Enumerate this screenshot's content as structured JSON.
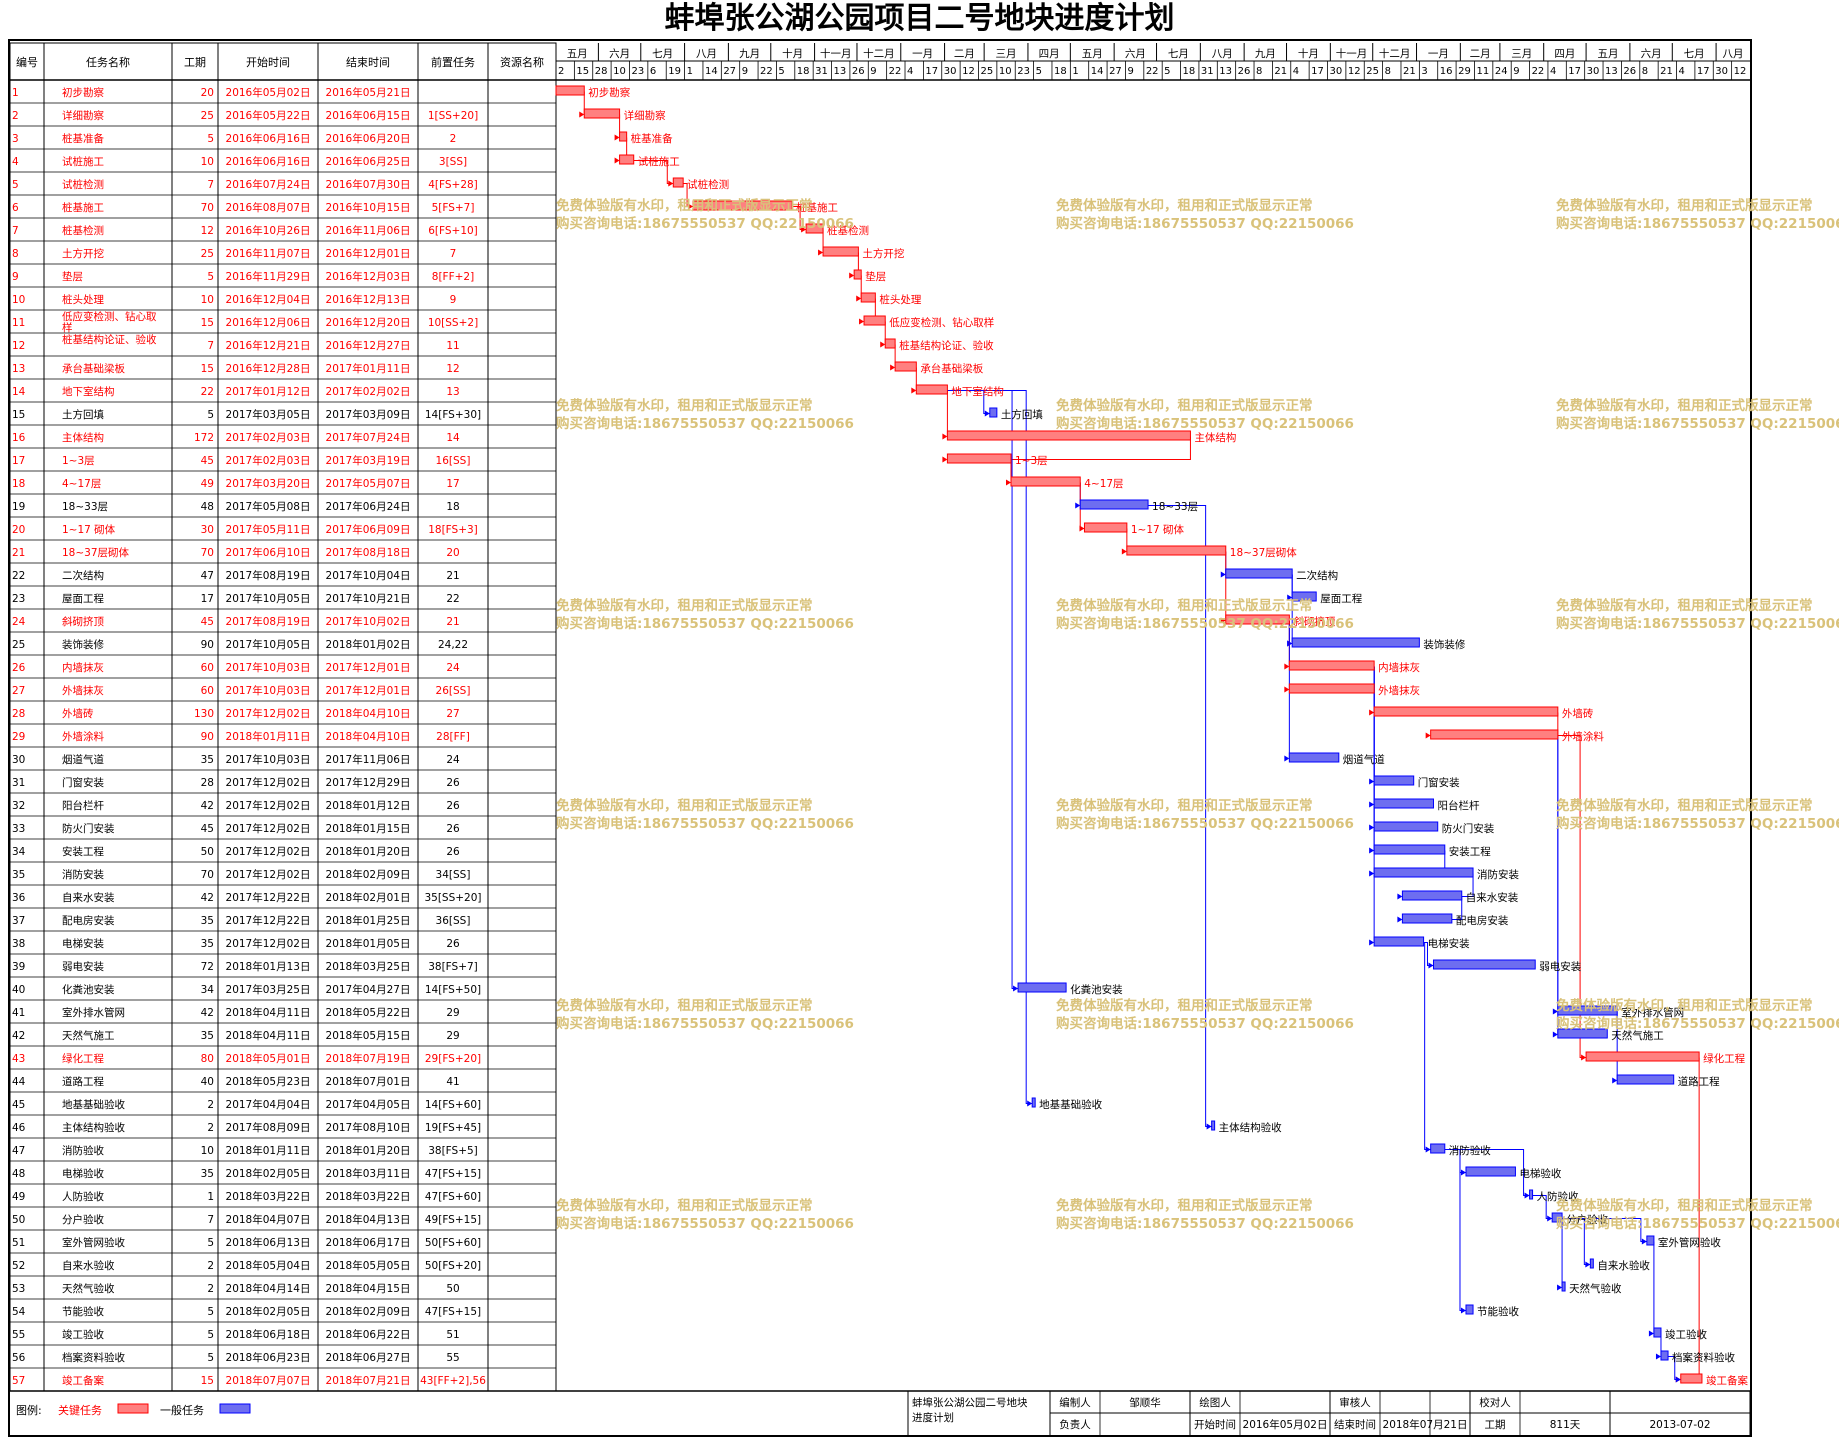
{
  "title": "蚌埠张公湖公园项目二号地块进度计划",
  "headers": {
    "id": "编号",
    "name": "任务名称",
    "dur": "工期",
    "start": "开始时间",
    "end": "结束时间",
    "pred": "前置任务",
    "res": "资源名称"
  },
  "timeline": {
    "months": [
      "五月",
      "六月",
      "七月",
      "八月",
      "九月",
      "十月",
      "十一月",
      "十二月",
      "一月",
      "二月",
      "三月",
      "四月",
      "五月",
      "六月",
      "七月",
      "八月",
      "九月",
      "十月",
      "十一月",
      "十二月",
      "一月",
      "二月",
      "三月",
      "四月",
      "五月",
      "六月",
      "七月",
      "八月"
    ],
    "weeks": [
      "2",
      "15",
      "28",
      "10",
      "23",
      "6",
      "19",
      "1",
      "14",
      "27",
      "9",
      "22",
      "5",
      "18",
      "31",
      "13",
      "26",
      "9",
      "22",
      "4",
      "17",
      "30",
      "12",
      "25",
      "10",
      "23",
      "5",
      "18",
      "1",
      "14",
      "27",
      "9",
      "22",
      "5",
      "18",
      "31",
      "13",
      "26",
      "8",
      "21",
      "4",
      "17",
      "30",
      "12",
      "25",
      "8",
      "21",
      "3",
      "16",
      "29",
      "11",
      "24",
      "9",
      "22",
      "4",
      "17",
      "30",
      "13",
      "26",
      "8",
      "21",
      "4",
      "17",
      "30",
      "12"
    ]
  },
  "tasks": [
    {
      "id": "1",
      "name": "初步勘察",
      "dur": "20",
      "start": "2016年05月02日",
      "end": "2016年05月21日",
      "pred": "",
      "critical": true
    },
    {
      "id": "2",
      "name": "详细勘察",
      "dur": "25",
      "start": "2016年05月22日",
      "end": "2016年06月15日",
      "pred": "1[SS+20]",
      "critical": true
    },
    {
      "id": "3",
      "name": "桩基准备",
      "dur": "5",
      "start": "2016年06月16日",
      "end": "2016年06月20日",
      "pred": "2",
      "critical": true
    },
    {
      "id": "4",
      "name": "试桩施工",
      "dur": "10",
      "start": "2016年06月16日",
      "end": "2016年06月25日",
      "pred": "3[SS]",
      "critical": true
    },
    {
      "id": "5",
      "name": "试桩检测",
      "dur": "7",
      "start": "2016年07月24日",
      "end": "2016年07月30日",
      "pred": "4[FS+28]",
      "critical": true
    },
    {
      "id": "6",
      "name": "桩基施工",
      "dur": "70",
      "start": "2016年08月07日",
      "end": "2016年10月15日",
      "pred": "5[FS+7]",
      "critical": true
    },
    {
      "id": "7",
      "name": "桩基检测",
      "dur": "12",
      "start": "2016年10月26日",
      "end": "2016年11月06日",
      "pred": "6[FS+10]",
      "critical": true
    },
    {
      "id": "8",
      "name": "土方开挖",
      "dur": "25",
      "start": "2016年11月07日",
      "end": "2016年12月01日",
      "pred": "7",
      "critical": true
    },
    {
      "id": "9",
      "name": "垫层",
      "dur": "5",
      "start": "2016年11月29日",
      "end": "2016年12月03日",
      "pred": "8[FF+2]",
      "critical": true
    },
    {
      "id": "10",
      "name": "桩头处理",
      "dur": "10",
      "start": "2016年12月04日",
      "end": "2016年12月13日",
      "pred": "9",
      "critical": true
    },
    {
      "id": "11",
      "name": "低应变检测、钻心取样",
      "dur": "15",
      "start": "2016年12月06日",
      "end": "2016年12月20日",
      "pred": "10[SS+2]",
      "critical": true
    },
    {
      "id": "12",
      "name": "桩基结构论证、验收",
      "dur": "7",
      "start": "2016年12月21日",
      "end": "2016年12月27日",
      "pred": "11",
      "critical": true
    },
    {
      "id": "13",
      "name": "承台基础梁板",
      "dur": "15",
      "start": "2016年12月28日",
      "end": "2017年01月11日",
      "pred": "12",
      "critical": true
    },
    {
      "id": "14",
      "name": "地下室结构",
      "dur": "22",
      "start": "2017年01月12日",
      "end": "2017年02月02日",
      "pred": "13",
      "critical": true
    },
    {
      "id": "15",
      "name": "土方回填",
      "dur": "5",
      "start": "2017年03月05日",
      "end": "2017年03月09日",
      "pred": "14[FS+30]",
      "critical": false
    },
    {
      "id": "16",
      "name": "主体结构",
      "dur": "172",
      "start": "2017年02月03日",
      "end": "2017年07月24日",
      "pred": "14",
      "critical": true
    },
    {
      "id": "17",
      "name": "1~3层",
      "dur": "45",
      "start": "2017年02月03日",
      "end": "2017年03月19日",
      "pred": "16[SS]",
      "critical": true
    },
    {
      "id": "18",
      "name": "4~17层",
      "dur": "49",
      "start": "2017年03月20日",
      "end": "2017年05月07日",
      "pred": "17",
      "critical": true
    },
    {
      "id": "19",
      "name": "18~33层",
      "dur": "48",
      "start": "2017年05月08日",
      "end": "2017年06月24日",
      "pred": "18",
      "critical": false
    },
    {
      "id": "20",
      "name": "1~17 砌体",
      "dur": "30",
      "start": "2017年05月11日",
      "end": "2017年06月09日",
      "pred": "18[FS+3]",
      "critical": true
    },
    {
      "id": "21",
      "name": "18~37层砌体",
      "dur": "70",
      "start": "2017年06月10日",
      "end": "2017年08月18日",
      "pred": "20",
      "critical": true
    },
    {
      "id": "22",
      "name": "二次结构",
      "dur": "47",
      "start": "2017年08月19日",
      "end": "2017年10月04日",
      "pred": "21",
      "critical": false
    },
    {
      "id": "23",
      "name": "屋面工程",
      "dur": "17",
      "start": "2017年10月05日",
      "end": "2017年10月21日",
      "pred": "22",
      "critical": false
    },
    {
      "id": "24",
      "name": "斜砌挤顶",
      "dur": "45",
      "start": "2017年08月19日",
      "end": "2017年10月02日",
      "pred": "21",
      "critical": true
    },
    {
      "id": "25",
      "name": "装饰装修",
      "dur": "90",
      "start": "2017年10月05日",
      "end": "2018年01月02日",
      "pred": "24,22",
      "critical": false
    },
    {
      "id": "26",
      "name": "内墙抹灰",
      "dur": "60",
      "start": "2017年10月03日",
      "end": "2017年12月01日",
      "pred": "24",
      "critical": true
    },
    {
      "id": "27",
      "name": "外墙抹灰",
      "dur": "60",
      "start": "2017年10月03日",
      "end": "2017年12月01日",
      "pred": "26[SS]",
      "critical": true
    },
    {
      "id": "28",
      "name": "外墙砖",
      "dur": "130",
      "start": "2017年12月02日",
      "end": "2018年04月10日",
      "pred": "27",
      "critical": true
    },
    {
      "id": "29",
      "name": "外墙涂料",
      "dur": "90",
      "start": "2018年01月11日",
      "end": "2018年04月10日",
      "pred": "28[FF]",
      "critical": true
    },
    {
      "id": "30",
      "name": "烟道气道",
      "dur": "35",
      "start": "2017年10月03日",
      "end": "2017年11月06日",
      "pred": "24",
      "critical": false
    },
    {
      "id": "31",
      "name": "门窗安装",
      "dur": "28",
      "start": "2017年12月02日",
      "end": "2017年12月29日",
      "pred": "26",
      "critical": false
    },
    {
      "id": "32",
      "name": "阳台栏杆",
      "dur": "42",
      "start": "2017年12月02日",
      "end": "2018年01月12日",
      "pred": "26",
      "critical": false
    },
    {
      "id": "33",
      "name": "防火门安装",
      "dur": "45",
      "start": "2017年12月02日",
      "end": "2018年01月15日",
      "pred": "26",
      "critical": false
    },
    {
      "id": "34",
      "name": "安装工程",
      "dur": "50",
      "start": "2017年12月02日",
      "end": "2018年01月20日",
      "pred": "26",
      "critical": false
    },
    {
      "id": "35",
      "name": "消防安装",
      "dur": "70",
      "start": "2017年12月02日",
      "end": "2018年02月09日",
      "pred": "34[SS]",
      "critical": false
    },
    {
      "id": "36",
      "name": "自来水安装",
      "dur": "42",
      "start": "2017年12月22日",
      "end": "2018年02月01日",
      "pred": "35[SS+20]",
      "critical": false
    },
    {
      "id": "37",
      "name": "配电房安装",
      "dur": "35",
      "start": "2017年12月22日",
      "end": "2018年01月25日",
      "pred": "36[SS]",
      "critical": false
    },
    {
      "id": "38",
      "name": "电梯安装",
      "dur": "35",
      "start": "2017年12月02日",
      "end": "2018年01月05日",
      "pred": "26",
      "critical": false
    },
    {
      "id": "39",
      "name": "弱电安装",
      "dur": "72",
      "start": "2018年01月13日",
      "end": "2018年03月25日",
      "pred": "38[FS+7]",
      "critical": false
    },
    {
      "id": "40",
      "name": "化粪池安装",
      "dur": "34",
      "start": "2017年03月25日",
      "end": "2017年04月27日",
      "pred": "14[FS+50]",
      "critical": false
    },
    {
      "id": "41",
      "name": "室外排水管网",
      "dur": "42",
      "start": "2018年04月11日",
      "end": "2018年05月22日",
      "pred": "29",
      "critical": false
    },
    {
      "id": "42",
      "name": "天然气施工",
      "dur": "35",
      "start": "2018年04月11日",
      "end": "2018年05月15日",
      "pred": "29",
      "critical": false
    },
    {
      "id": "43",
      "name": "绿化工程",
      "dur": "80",
      "start": "2018年05月01日",
      "end": "2018年07月19日",
      "pred": "29[FS+20]",
      "critical": true
    },
    {
      "id": "44",
      "name": "道路工程",
      "dur": "40",
      "start": "2018年05月23日",
      "end": "2018年07月01日",
      "pred": "41",
      "critical": false
    },
    {
      "id": "45",
      "name": "地基基础验收",
      "dur": "2",
      "start": "2017年04月04日",
      "end": "2017年04月05日",
      "pred": "14[FS+60]",
      "critical": false
    },
    {
      "id": "46",
      "name": "主体结构验收",
      "dur": "2",
      "start": "2017年08月09日",
      "end": "2017年08月10日",
      "pred": "19[FS+45]",
      "critical": false
    },
    {
      "id": "47",
      "name": "消防验收",
      "dur": "10",
      "start": "2018年01月11日",
      "end": "2018年01月20日",
      "pred": "38[FS+5]",
      "critical": false
    },
    {
      "id": "48",
      "name": "电梯验收",
      "dur": "35",
      "start": "2018年02月05日",
      "end": "2018年03月11日",
      "pred": "47[FS+15]",
      "critical": false
    },
    {
      "id": "49",
      "name": "人防验收",
      "dur": "1",
      "start": "2018年03月22日",
      "end": "2018年03月22日",
      "pred": "47[FS+60]",
      "critical": false
    },
    {
      "id": "50",
      "name": "分户验收",
      "dur": "7",
      "start": "2018年04月07日",
      "end": "2018年04月13日",
      "pred": "49[FS+15]",
      "critical": false
    },
    {
      "id": "51",
      "name": "室外管网验收",
      "dur": "5",
      "start": "2018年06月13日",
      "end": "2018年06月17日",
      "pred": "50[FS+60]",
      "critical": false
    },
    {
      "id": "52",
      "name": "自来水验收",
      "dur": "2",
      "start": "2018年05月04日",
      "end": "2018年05月05日",
      "pred": "50[FS+20]",
      "critical": false
    },
    {
      "id": "53",
      "name": "天然气验收",
      "dur": "2",
      "start": "2018年04月14日",
      "end": "2018年04月15日",
      "pred": "50",
      "critical": false
    },
    {
      "id": "54",
      "name": "节能验收",
      "dur": "5",
      "start": "2018年02月05日",
      "end": "2018年02月09日",
      "pred": "47[FS+15]",
      "critical": false
    },
    {
      "id": "55",
      "name": "竣工验收",
      "dur": "5",
      "start": "2018年06月18日",
      "end": "2018年06月22日",
      "pred": "51",
      "critical": false
    },
    {
      "id": "56",
      "name": "档案资料验收",
      "dur": "5",
      "start": "2018年06月23日",
      "end": "2018年06月27日",
      "pred": "55",
      "critical": false
    },
    {
      "id": "57",
      "name": "竣工备案",
      "dur": "15",
      "start": "2018年07月07日",
      "end": "2018年07月21日",
      "pred": "43[FF+2],56",
      "critical": true
    }
  ],
  "watermark": {
    "line1": "免费体验版有水印，租用和正式版显示正常",
    "line2": "购买咨询电话:18675550537 QQ:22150066"
  },
  "legend": {
    "label": "图例:",
    "critical": "关键任务",
    "normal": "一般任务"
  },
  "footer": {
    "project": "蚌埠张公湖公园二号地块进度计划",
    "compiler_label": "编制人",
    "compiler": "邹顺华",
    "drawer_label": "绘图人",
    "reviewer_label": "审核人",
    "checker_label": "校对人",
    "manager_label": "负责人",
    "start_label": "开始时间",
    "start": "2016年05月02日",
    "end_label": "结束时间",
    "end": "2018年07月21日",
    "dur_label": "工期",
    "dur": "811天",
    "date": "2013-07-02"
  },
  "colors": {
    "critical": "#ff0000",
    "critical_fill": "#ff8080",
    "normal": "#0000ff",
    "normal_fill": "#6e6ef0",
    "watermark": "#d9c27a"
  },
  "chart_data": {
    "type": "gantt",
    "x_unit": "date",
    "x_range": [
      "2016-05-02",
      "2018-08-25"
    ],
    "tasks_ref": "tasks"
  }
}
